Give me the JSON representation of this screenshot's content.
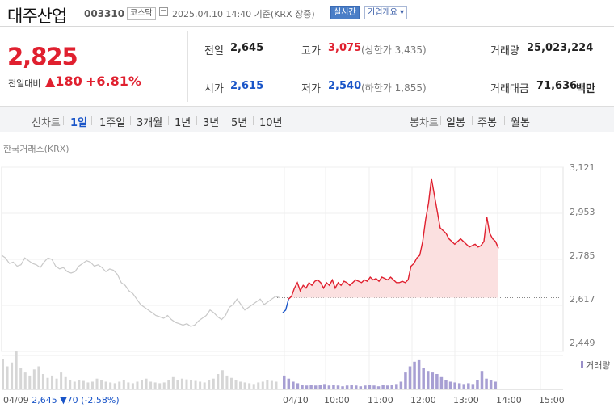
{
  "header": {
    "name": "대주산업",
    "code": "003310",
    "market": "코스닥",
    "datetime": "2025.04.10 14:40 기준(KRX 장중)",
    "realtime_label": "실시간",
    "corp_label": "기업개요 ▾"
  },
  "summary": {
    "price": "2,825",
    "change_label": "전일대비",
    "change_value": "▲180",
    "change_pct": "+6.81%",
    "prev_close_label": "전일",
    "prev_close": "2,645",
    "open_label": "시가",
    "open": "2,615",
    "high_label": "고가",
    "high": "3,075",
    "upper_limit": "(상한가 3,435)",
    "low_label": "저가",
    "low": "2,540",
    "lower_limit": "(하한가 1,855)",
    "volume_label": "거래량",
    "volume": "25,023,224",
    "amount_label": "거래대금",
    "amount": "71,636",
    "amount_unit": "백만"
  },
  "periods": {
    "line_label": "선차트",
    "line_items": [
      "1일",
      "1주일",
      "3개월",
      "1년",
      "3년",
      "5년",
      "10년"
    ],
    "selected": "1일",
    "candle_label": "봉차트",
    "candle_items": [
      "일봉",
      "주봉",
      "월봉"
    ]
  },
  "chart": {
    "source": "한국거래소(KRX)",
    "volume_legend": "거래량",
    "prev_day": {
      "date": "04/09",
      "close": "2,645",
      "change": "▼70",
      "pct": "(-2.58%)"
    }
  },
  "colors": {
    "up": "#e0202f",
    "down": "#1a55c8",
    "prev_line": "#c8c8c8",
    "fill": "#fbe0e0"
  },
  "chart_data": {
    "type": "line",
    "y_ticks": [
      "3,121",
      "2,953",
      "2,785",
      "2,617",
      "2,449"
    ],
    "x_ticks": [
      "04/10",
      "10:00",
      "11:00",
      "12:00",
      "13:00",
      "14:00",
      "15:00"
    ],
    "ylim": [
      2449,
      3121
    ],
    "reference_price": 2645,
    "series": [
      {
        "values_prev_day": [
          2800,
          2790,
          2770,
          2775,
          2760,
          2765,
          2790,
          2780,
          2770,
          2765,
          2755,
          2775,
          2790,
          2785,
          2760,
          2750,
          2755,
          2740,
          2735,
          2740,
          2760,
          2770,
          2780,
          2775,
          2760,
          2765,
          2755,
          2740,
          2750,
          2745,
          2730,
          2700,
          2690,
          2670,
          2660,
          2640,
          2620,
          2610,
          2600,
          2590,
          2580,
          2575,
          2570,
          2580,
          2565,
          2555,
          2550,
          2545,
          2550,
          2540,
          2545,
          2560,
          2570,
          2580,
          2600,
          2590,
          2575,
          2565,
          2580,
          2610,
          2620,
          2640,
          2620,
          2600,
          2610,
          2620,
          2630,
          2640,
          2620,
          2630,
          2640,
          2650,
          2645
        ]
      },
      {
        "values_today": [
          2590,
          2600,
          2640,
          2650,
          2680,
          2700,
          2670,
          2690,
          2680,
          2700,
          2690,
          2705,
          2710,
          2700,
          2680,
          2700,
          2690,
          2710,
          2680,
          2700,
          2690,
          2705,
          2700,
          2690,
          2700,
          2710,
          2705,
          2700,
          2710,
          2705,
          2720,
          2710,
          2715,
          2705,
          2720,
          2715,
          2710,
          2720,
          2710,
          2700,
          2700,
          2705,
          2700,
          2710,
          2760,
          2770,
          2790,
          2800,
          2850,
          2930,
          2990,
          3080,
          3020,
          2960,
          2900,
          2890,
          2880,
          2860,
          2850,
          2840,
          2850,
          2860,
          2850,
          2840,
          2830,
          2835,
          2840,
          2830,
          2835,
          2850,
          2940,
          2880,
          2860,
          2850,
          2825
        ]
      }
    ],
    "volume_prev": [
      40,
      30,
      35,
      50,
      28,
      22,
      18,
      26,
      30,
      20,
      15,
      18,
      14,
      22,
      16,
      12,
      10,
      12,
      11,
      9,
      10,
      14,
      12,
      10,
      9,
      8,
      10,
      12,
      9,
      8,
      10,
      12,
      14,
      10,
      9,
      8,
      9,
      12,
      16,
      12,
      14,
      13,
      12,
      11,
      10,
      9,
      12,
      14,
      20,
      25,
      18,
      15,
      12,
      10,
      9,
      8,
      7,
      9,
      10,
      12,
      11,
      10
    ],
    "volume_today": [
      18,
      14,
      10,
      8,
      6,
      5,
      6,
      5,
      6,
      7,
      5,
      6,
      5,
      4,
      5,
      6,
      5,
      4,
      5,
      6,
      5,
      4,
      6,
      5,
      6,
      7,
      10,
      22,
      30,
      36,
      38,
      28,
      24,
      22,
      20,
      16,
      12,
      10,
      9,
      8,
      7,
      8,
      7,
      12,
      24,
      14,
      12,
      10
    ]
  }
}
